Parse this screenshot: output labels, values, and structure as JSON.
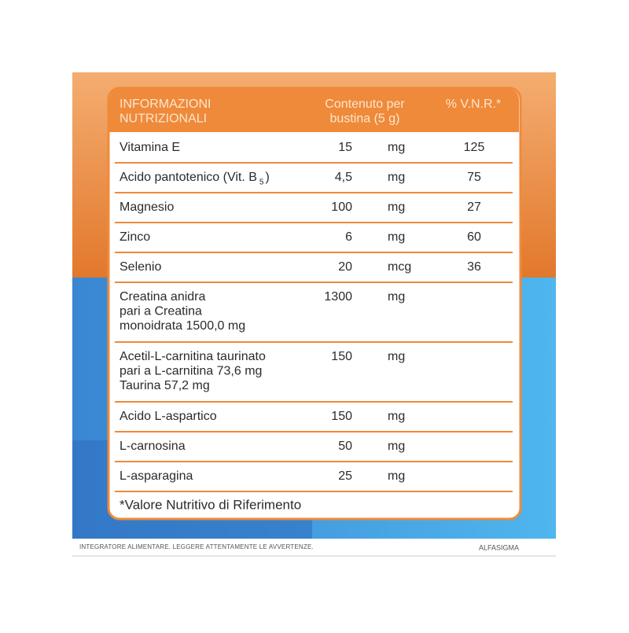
{
  "table": {
    "header": {
      "nutrient": [
        "INFORMAZIONI",
        "NUTRIZIONALI"
      ],
      "content": [
        "Contenuto per",
        "bustina (5 g)"
      ],
      "vnr": "% V.N.R.*"
    },
    "rows": [
      {
        "name": [
          "Vitamina E"
        ],
        "amount": "15",
        "unit": "mg",
        "vnr": "125"
      },
      {
        "name": [
          "Acido pantotenico (Vit. B"
        ],
        "sub": "5",
        "name_end": ")",
        "amount": "4,5",
        "unit": "mg",
        "vnr": "75"
      },
      {
        "name": [
          "Magnesio"
        ],
        "amount": "100",
        "unit": "mg",
        "vnr": "27"
      },
      {
        "name": [
          "Zinco"
        ],
        "amount": "6",
        "unit": "mg",
        "vnr": "60"
      },
      {
        "name": [
          "Selenio"
        ],
        "amount": "20",
        "unit": "mcg",
        "vnr": "36"
      },
      {
        "name": [
          "Creatina anidra",
          "pari a Creatina",
          "monoidrata 1500,0 mg"
        ],
        "amount": "1300",
        "unit": "mg"
      },
      {
        "name": [
          "Acetil-L-carnitina taurinato",
          "pari a L-carnitina 73,6 mg",
          "Taurina 57,2 mg"
        ],
        "amount": "150",
        "unit": "mg"
      },
      {
        "name": [
          "Acido L-aspartico"
        ],
        "amount": "150",
        "unit": "mg"
      },
      {
        "name": [
          "L-carnosina"
        ],
        "amount": "50",
        "unit": "mg"
      },
      {
        "name": [
          "L-asparagina"
        ],
        "amount": "25",
        "unit": "mg"
      }
    ],
    "footnote": "*Valore Nutritivo di Riferimento"
  },
  "footer": {
    "warning": "INTEGRATORE ALIMENTARE. LEGGERE ATTENTAMENTE LE AVVERTENZE.",
    "brand": "ALFASIGMA"
  }
}
